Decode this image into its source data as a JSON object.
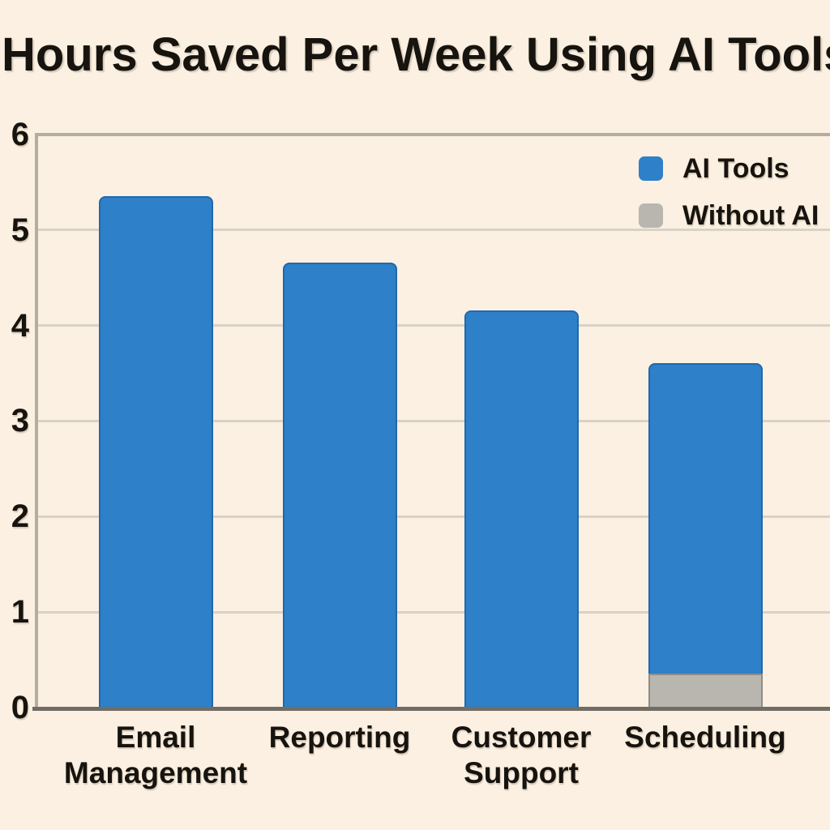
{
  "title": "Hours Saved Per Week Using AI Tools",
  "chart_data": {
    "type": "bar",
    "title": "Hours Saved Per Week Using AI Tools",
    "categories": [
      "Email Management",
      "Reporting",
      "Customer Support",
      "Scheduling"
    ],
    "series": [
      {
        "name": "AI Tools",
        "color": "#2e80c8",
        "values": [
          5.35,
          4.65,
          4.15,
          3.6
        ]
      },
      {
        "name": "Without AI",
        "color": "#b9b6b0",
        "values": [
          null,
          null,
          null,
          0.35
        ]
      }
    ],
    "xlabel": "",
    "ylabel": "",
    "ylim": [
      0,
      6
    ],
    "yticks": [
      0,
      1,
      2,
      3,
      4,
      5,
      6
    ],
    "grid": true,
    "legend_position": "top-right",
    "background_color": "#fbf0e1",
    "grid_color": "#d8d2c7",
    "axis_color": "#b3ada3",
    "baseline_color": "#716d65",
    "text_color": "#17130e"
  }
}
